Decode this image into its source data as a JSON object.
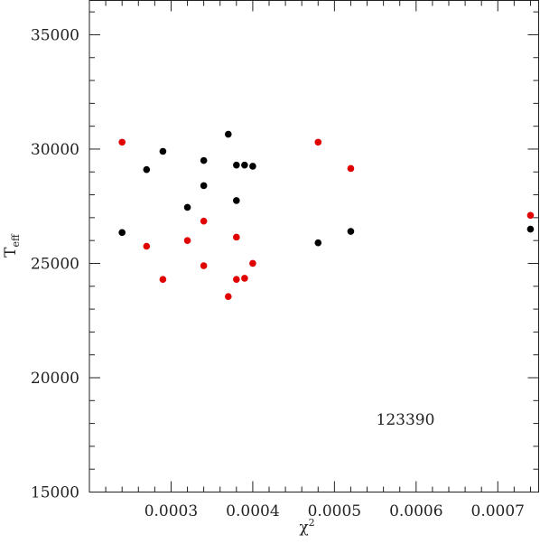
{
  "chart_data": {
    "type": "scatter",
    "title": "",
    "xlabel": "χ²",
    "ylabel": "T_eff",
    "ylabel_main": "T",
    "ylabel_sub": "eff",
    "xlabel_main": "χ",
    "xlabel_sup": "2",
    "xlim": [
      0.0002,
      0.00075
    ],
    "ylim": [
      15000,
      36500
    ],
    "x_ticks": [
      0.0003,
      0.0004,
      0.0005,
      0.0006,
      0.0007
    ],
    "x_tick_labels": [
      "0.0003",
      "0.0004",
      "0.0005",
      "0.0006",
      "0.0007"
    ],
    "y_ticks": [
      15000,
      20000,
      25000,
      30000,
      35000
    ],
    "y_tick_labels": [
      "15000",
      "20000",
      "25000",
      "30000",
      "35000"
    ],
    "grid": false,
    "annotation": "123390",
    "series": [
      {
        "color": "#000000",
        "points": [
          [
            0.00024,
            26350
          ],
          [
            0.00027,
            29100
          ],
          [
            0.00029,
            29900
          ],
          [
            0.00032,
            27450
          ],
          [
            0.00034,
            29500
          ],
          [
            0.00034,
            28400
          ],
          [
            0.00037,
            30650
          ],
          [
            0.00038,
            29300
          ],
          [
            0.00038,
            27750
          ],
          [
            0.00039,
            29300
          ],
          [
            0.0004,
            29250
          ],
          [
            0.00048,
            25900
          ],
          [
            0.00052,
            26400
          ],
          [
            0.00074,
            26500
          ]
        ]
      },
      {
        "color": "#e00000",
        "points": [
          [
            0.00024,
            30300
          ],
          [
            0.00027,
            25750
          ],
          [
            0.00029,
            24300
          ],
          [
            0.00032,
            26000
          ],
          [
            0.00034,
            26850
          ],
          [
            0.00034,
            24900
          ],
          [
            0.00037,
            23550
          ],
          [
            0.00038,
            26150
          ],
          [
            0.00038,
            24300
          ],
          [
            0.00039,
            24350
          ],
          [
            0.0004,
            25000
          ],
          [
            0.00048,
            30300
          ],
          [
            0.00052,
            29150
          ],
          [
            0.00074,
            27100
          ]
        ]
      }
    ]
  }
}
